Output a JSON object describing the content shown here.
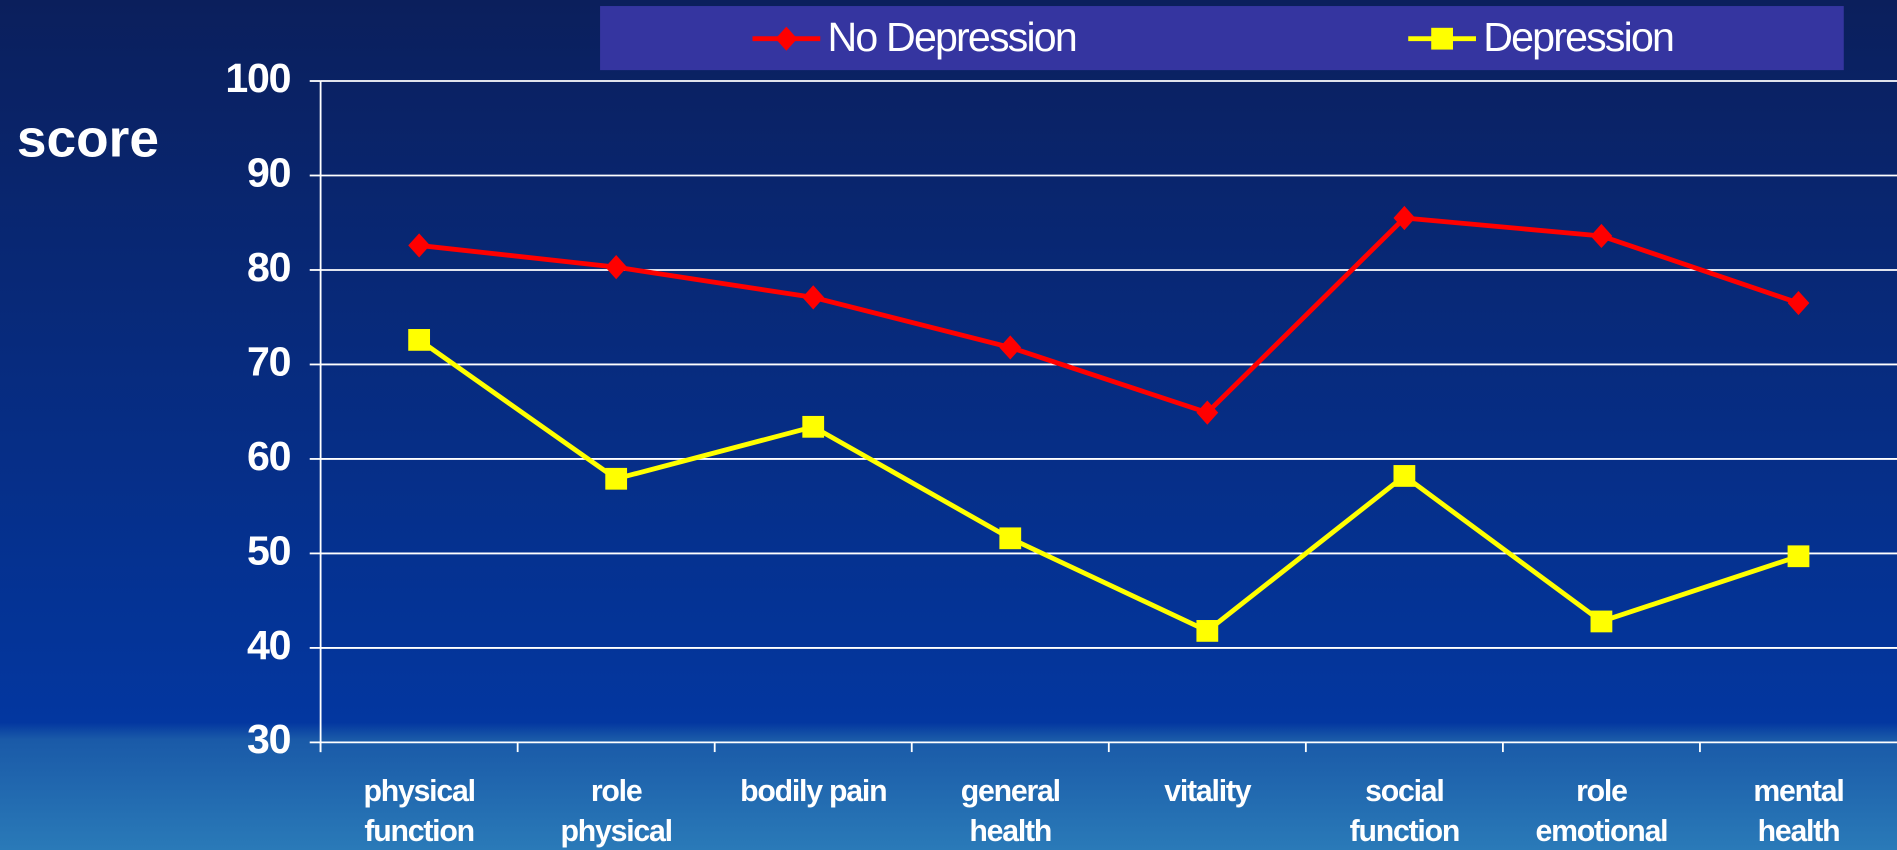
{
  "chart_data": {
    "type": "line",
    "y_label": "score",
    "categories": [
      "physical\nfunction",
      "role\nphysical",
      "bodily pain",
      "general\nhealth",
      "vitality",
      "social\nfunction",
      "role\nemotional",
      "mental\nhealth"
    ],
    "series": [
      {
        "name": "No Depression",
        "color": "#ff0000",
        "marker": "diamond",
        "values": [
          82.6,
          80.3,
          77.1,
          71.8,
          64.9,
          85.5,
          83.6,
          76.5
        ]
      },
      {
        "name": "Depression",
        "color": "#ffff00",
        "marker": "square",
        "values": [
          72.6,
          57.9,
          63.4,
          51.6,
          41.8,
          58.2,
          42.8,
          49.7
        ]
      }
    ],
    "ylim": [
      30,
      100
    ],
    "yticks": [
      30,
      40,
      50,
      60,
      70,
      80,
      90,
      100
    ],
    "grid": true,
    "legend": "top"
  }
}
